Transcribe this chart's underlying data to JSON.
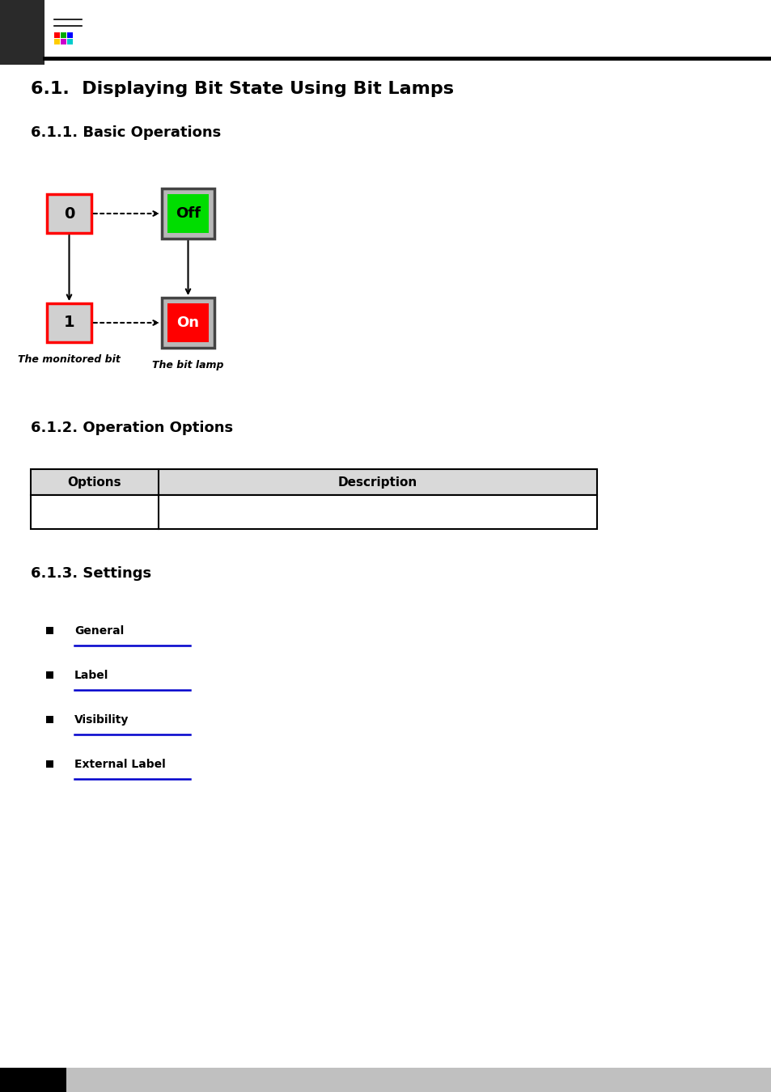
{
  "title_main": "6.1.  Displaying Bit State Using Bit Lamps",
  "title_sub1": "6.1.1. Basic Operations",
  "title_sub2": "6.1.2. Operation Options",
  "title_sub3": "6.1.3. Settings",
  "monitored_bit_label": "The monitored bit",
  "bit_lamp_label": "The bit lamp",
  "table_col1": "Options",
  "table_col2": "Description",
  "settings_items": [
    "General",
    "Label",
    "Visibility",
    "External Label"
  ],
  "bg_color": "#ffffff",
  "header_bar_color": "#2a2a2a",
  "table_header_color": "#d9d9d9",
  "table_border_color": "#000000",
  "green_color": "#00dd00",
  "red_color": "#ff0000",
  "gray_box_color": "#b8b8b8",
  "blue_line_color": "#0000cc",
  "bullet_color": "#000000",
  "footer_black": "#000000",
  "footer_gray": "#c0c0c0"
}
